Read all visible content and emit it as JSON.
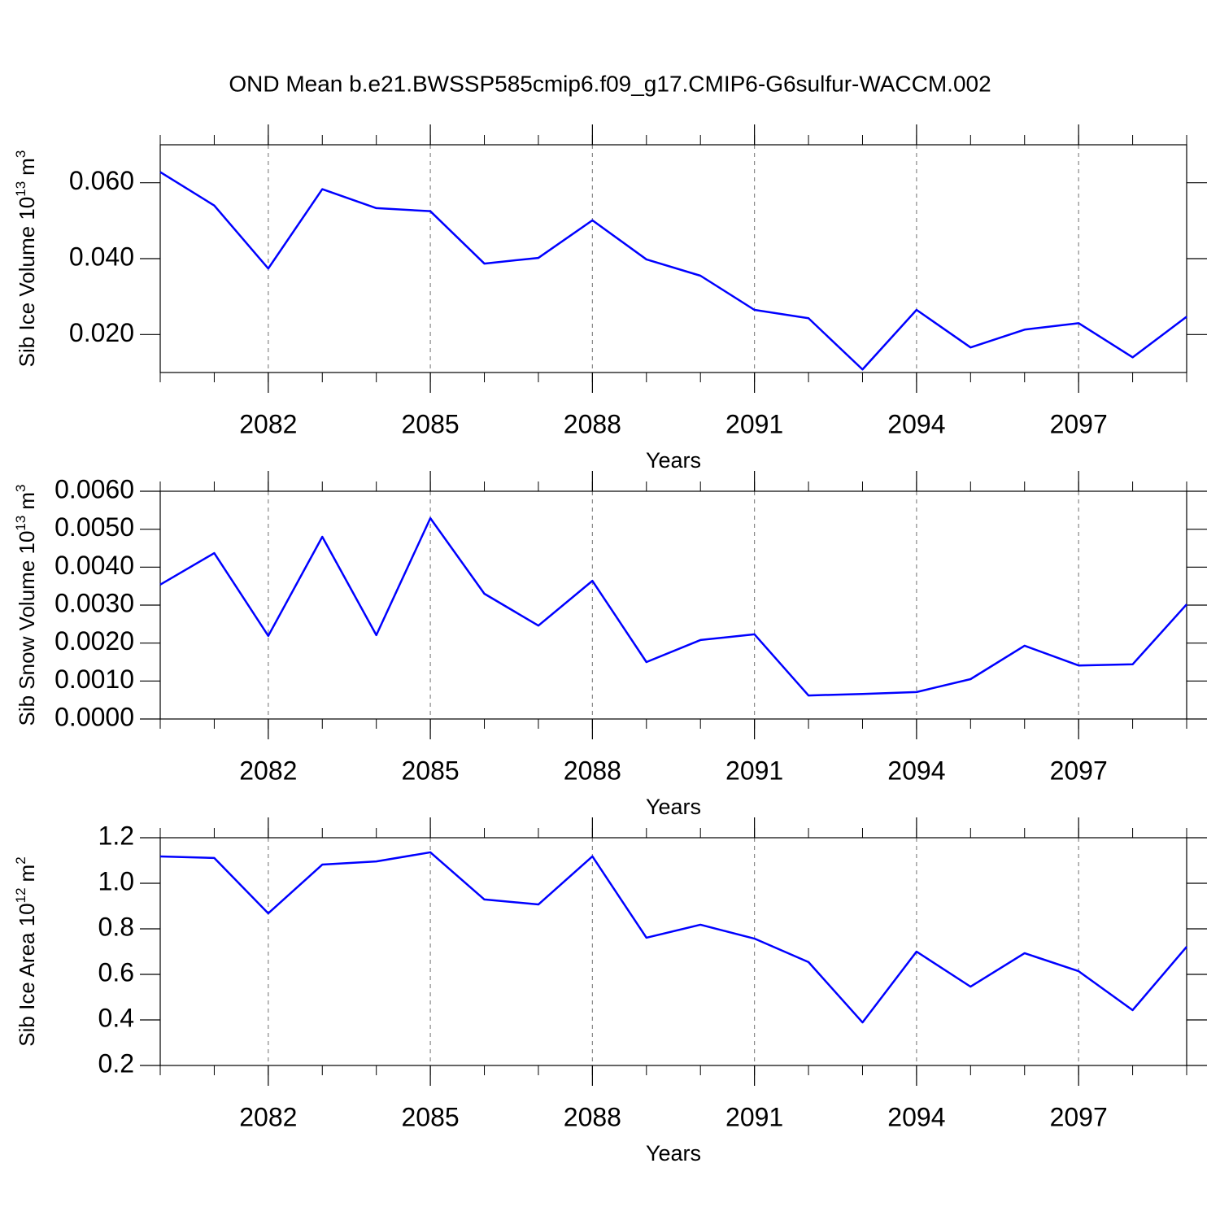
{
  "title": "OND Mean b.e21.BWSSP585cmip6.f09_g17.CMIP6-G6sulfur-WACCM.002",
  "chart_data": [
    {
      "type": "line",
      "xlabel": "Years",
      "ylabel": [
        "Sib Ice Volume 10",
        "13",
        "m",
        "3"
      ],
      "x": [
        2080,
        2081,
        2082,
        2083,
        2084,
        2085,
        2086,
        2087,
        2088,
        2089,
        2090,
        2091,
        2092,
        2093,
        2094,
        2095,
        2096,
        2097,
        2098,
        2099
      ],
      "values": [
        0.0628,
        0.054,
        0.0374,
        0.0583,
        0.0533,
        0.0525,
        0.0387,
        0.0402,
        0.0501,
        0.0398,
        0.0355,
        0.0265,
        0.0243,
        0.0108,
        0.0265,
        0.0166,
        0.0213,
        0.023,
        0.014,
        0.0247
      ],
      "color": "#0000ff",
      "xlim": [
        2080,
        2099
      ],
      "xticks": [
        2082,
        2085,
        2088,
        2091,
        2094,
        2097
      ],
      "ylim": [
        0.01,
        0.07
      ],
      "yticks": [
        {
          "value": 0.02,
          "label": "0.020"
        },
        {
          "value": 0.04,
          "label": "0.040"
        },
        {
          "value": 0.06,
          "label": "0.060"
        }
      ],
      "xgrid": true
    },
    {
      "type": "line",
      "xlabel": "Years",
      "ylabel": [
        "Sib Snow Volume 10",
        "13",
        "m",
        "3"
      ],
      "x": [
        2080,
        2081,
        2082,
        2083,
        2084,
        2085,
        2086,
        2087,
        2088,
        2089,
        2090,
        2091,
        2092,
        2093,
        2094,
        2095,
        2096,
        2097,
        2098,
        2099
      ],
      "values": [
        0.00354,
        0.00437,
        0.00219,
        0.0048,
        0.00221,
        0.00529,
        0.0033,
        0.00246,
        0.00364,
        0.0015,
        0.00208,
        0.00223,
        0.00062,
        0.00066,
        0.00071,
        0.00105,
        0.00193,
        0.00141,
        0.00144,
        0.00302
      ],
      "color": "#0000ff",
      "xlim": [
        2080,
        2099
      ],
      "xticks": [
        2082,
        2085,
        2088,
        2091,
        2094,
        2097
      ],
      "ylim": [
        0,
        0.006
      ],
      "yticks": [
        {
          "value": 0,
          "label": "0.0000"
        },
        {
          "value": 0.001,
          "label": "0.0010"
        },
        {
          "value": 0.002,
          "label": "0.0020"
        },
        {
          "value": 0.003,
          "label": "0.0030"
        },
        {
          "value": 0.004,
          "label": "0.0040"
        },
        {
          "value": 0.005,
          "label": "0.0050"
        },
        {
          "value": 0.006,
          "label": "0.0060"
        }
      ],
      "xgrid": true
    },
    {
      "type": "line",
      "xlabel": "Years",
      "ylabel": [
        "Sib Ice Area 10",
        "12",
        "m",
        "2"
      ],
      "x": [
        2080,
        2081,
        2082,
        2083,
        2084,
        2085,
        2086,
        2087,
        2088,
        2089,
        2090,
        2091,
        2092,
        2093,
        2094,
        2095,
        2096,
        2097,
        2098,
        2099
      ],
      "values": [
        1.118,
        1.111,
        0.868,
        1.082,
        1.096,
        1.136,
        0.929,
        0.907,
        1.118,
        0.761,
        0.818,
        0.757,
        0.654,
        0.389,
        0.7,
        0.546,
        0.693,
        0.614,
        0.443,
        0.721
      ],
      "color": "#0000ff",
      "xlim": [
        2080,
        2099
      ],
      "xticks": [
        2082,
        2085,
        2088,
        2091,
        2094,
        2097
      ],
      "ylim": [
        0.2,
        1.2
      ],
      "yticks": [
        0.2,
        0.4,
        0.6,
        0.8,
        {
          "value": 1.0,
          "label": "1.0"
        },
        1.2
      ],
      "xgrid": true
    }
  ]
}
